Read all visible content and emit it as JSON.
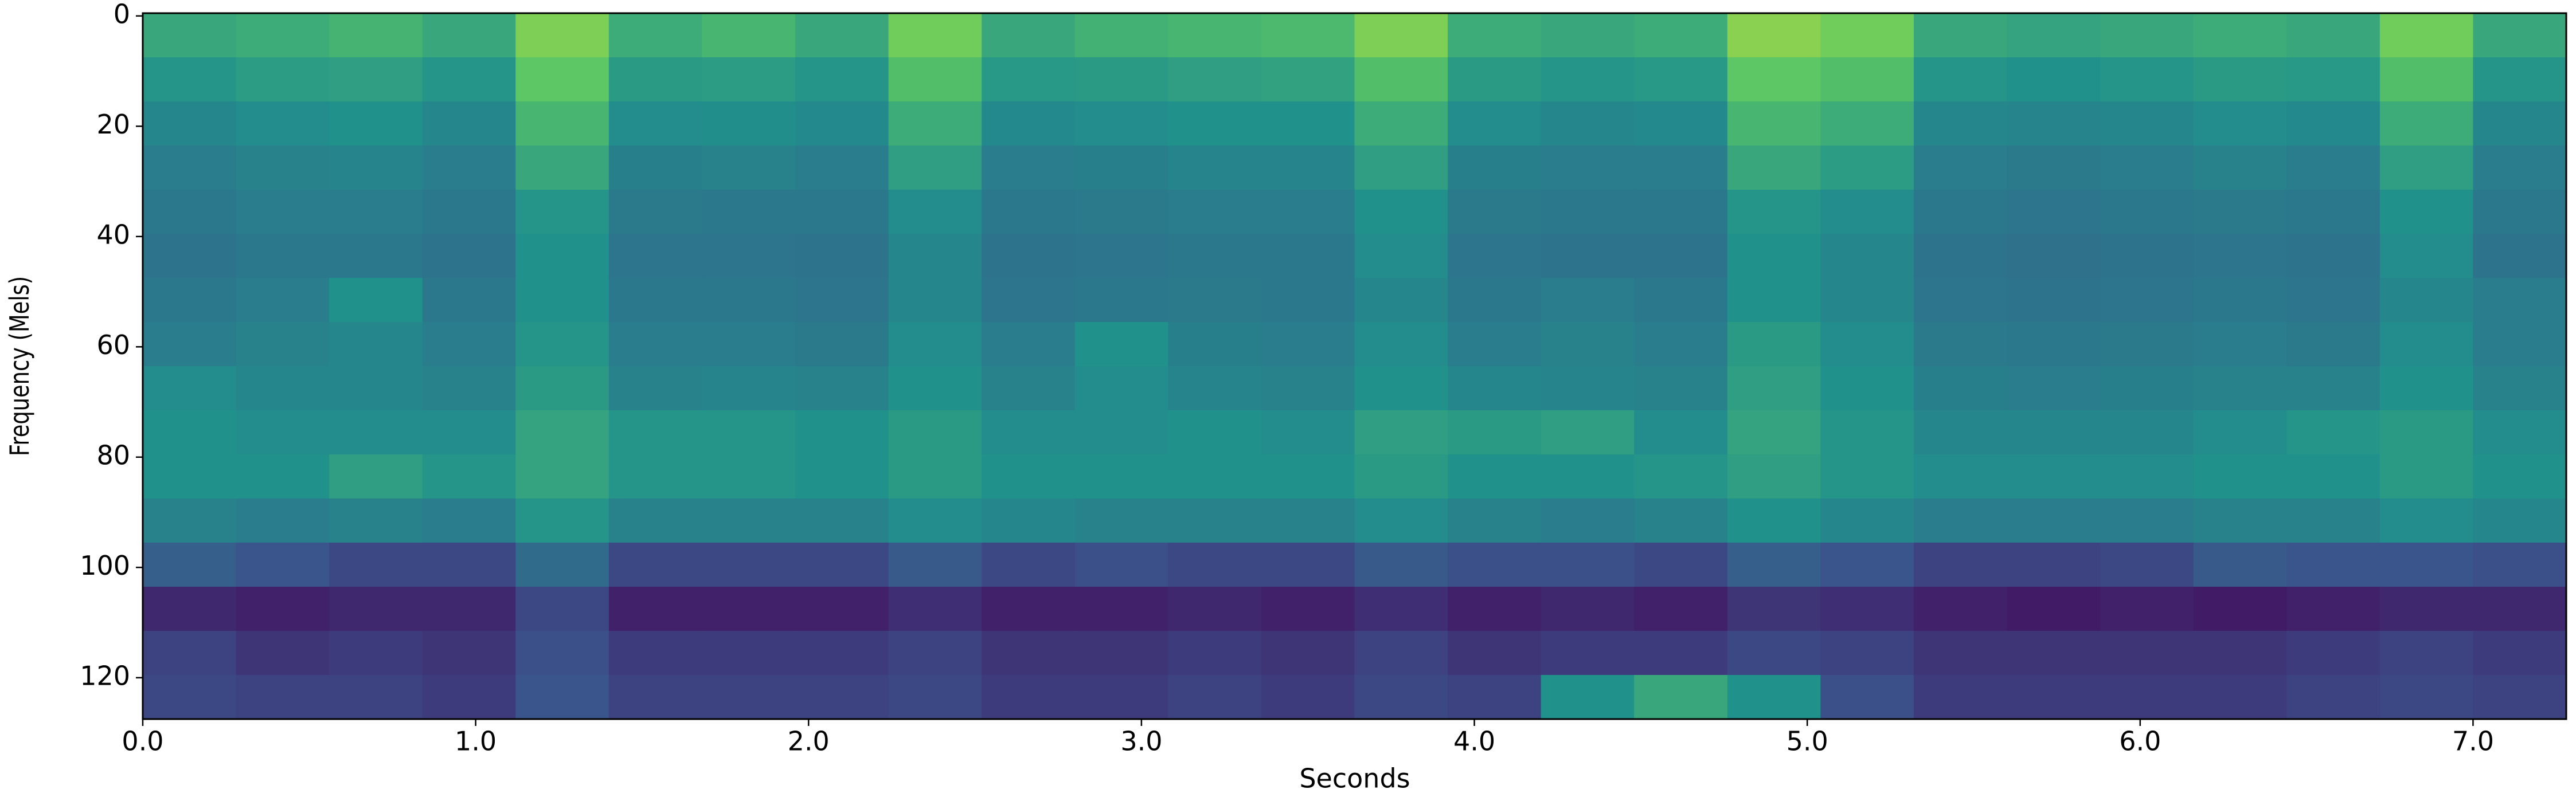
{
  "chart_data": {
    "type": "spectrogram",
    "colormap": "viridis",
    "x_label": "Seconds",
    "y_label": "Frequency (Mels)",
    "xlim": [
      0,
      7.28
    ],
    "ylim": [
      127.5,
      -0.5
    ],
    "xticks": [
      {
        "value": 0,
        "label": "0.0"
      },
      {
        "value": 1,
        "label": "1.0"
      },
      {
        "value": 2,
        "label": "2.0"
      },
      {
        "value": 3,
        "label": "3.0"
      },
      {
        "value": 4,
        "label": "4.0"
      },
      {
        "value": 5,
        "label": "5.0"
      },
      {
        "value": 6,
        "label": "6.0"
      },
      {
        "value": 7,
        "label": "7.0"
      }
    ],
    "yticks": [
      0,
      20,
      40,
      60,
      80,
      100,
      120
    ],
    "xbins": [
      0,
      0.28,
      0.56,
      0.84,
      1.12,
      1.4,
      1.68,
      1.96,
      2.24,
      2.52,
      2.8,
      3.08,
      3.36,
      3.64,
      3.92,
      4.2,
      4.48,
      4.76,
      5.04,
      5.32,
      5.6,
      5.88,
      6.16,
      6.44,
      6.72,
      7.0,
      7.28
    ],
    "ybins": [
      -0.5,
      7.5,
      15.5,
      23.5,
      31.5,
      39.5,
      47.5,
      55.5,
      63.5,
      71.5,
      79.5,
      87.5,
      95.5,
      103.5,
      111.5,
      119.5,
      127.5
    ],
    "z": [
      [
        0.6,
        0.62,
        0.65,
        0.6,
        0.8,
        0.62,
        0.66,
        0.6,
        0.78,
        0.6,
        0.64,
        0.66,
        0.68,
        0.8,
        0.62,
        0.6,
        0.62,
        0.82,
        0.78,
        0.6,
        0.58,
        0.6,
        0.62,
        0.6,
        0.78,
        0.6
      ],
      [
        0.52,
        0.55,
        0.56,
        0.52,
        0.74,
        0.54,
        0.55,
        0.52,
        0.7,
        0.53,
        0.54,
        0.56,
        0.57,
        0.7,
        0.54,
        0.52,
        0.53,
        0.74,
        0.7,
        0.52,
        0.5,
        0.52,
        0.54,
        0.53,
        0.7,
        0.52
      ],
      [
        0.46,
        0.48,
        0.5,
        0.46,
        0.66,
        0.48,
        0.49,
        0.47,
        0.62,
        0.47,
        0.48,
        0.5,
        0.5,
        0.62,
        0.48,
        0.46,
        0.47,
        0.66,
        0.62,
        0.46,
        0.45,
        0.46,
        0.48,
        0.47,
        0.62,
        0.46
      ],
      [
        0.42,
        0.44,
        0.45,
        0.42,
        0.6,
        0.43,
        0.44,
        0.42,
        0.56,
        0.42,
        0.43,
        0.45,
        0.45,
        0.56,
        0.43,
        0.42,
        0.42,
        0.6,
        0.55,
        0.42,
        0.41,
        0.42,
        0.44,
        0.42,
        0.56,
        0.42
      ],
      [
        0.4,
        0.42,
        0.42,
        0.4,
        0.52,
        0.41,
        0.4,
        0.4,
        0.48,
        0.4,
        0.41,
        0.42,
        0.42,
        0.5,
        0.41,
        0.4,
        0.4,
        0.52,
        0.48,
        0.4,
        0.39,
        0.4,
        0.41,
        0.4,
        0.5,
        0.4
      ],
      [
        0.38,
        0.4,
        0.4,
        0.38,
        0.5,
        0.39,
        0.39,
        0.38,
        0.46,
        0.38,
        0.39,
        0.4,
        0.4,
        0.48,
        0.39,
        0.38,
        0.38,
        0.5,
        0.46,
        0.38,
        0.37,
        0.38,
        0.39,
        0.38,
        0.48,
        0.38
      ],
      [
        0.4,
        0.42,
        0.5,
        0.4,
        0.5,
        0.4,
        0.4,
        0.39,
        0.46,
        0.39,
        0.4,
        0.41,
        0.4,
        0.46,
        0.4,
        0.42,
        0.4,
        0.5,
        0.46,
        0.39,
        0.38,
        0.39,
        0.4,
        0.39,
        0.46,
        0.42
      ],
      [
        0.42,
        0.44,
        0.46,
        0.42,
        0.52,
        0.42,
        0.42,
        0.41,
        0.48,
        0.42,
        0.5,
        0.43,
        0.42,
        0.48,
        0.42,
        0.44,
        0.42,
        0.54,
        0.48,
        0.41,
        0.4,
        0.41,
        0.42,
        0.41,
        0.48,
        0.42
      ],
      [
        0.48,
        0.46,
        0.46,
        0.44,
        0.54,
        0.44,
        0.45,
        0.44,
        0.5,
        0.44,
        0.48,
        0.45,
        0.44,
        0.5,
        0.46,
        0.45,
        0.44,
        0.56,
        0.5,
        0.43,
        0.42,
        0.43,
        0.44,
        0.44,
        0.5,
        0.44
      ],
      [
        0.5,
        0.48,
        0.48,
        0.48,
        0.58,
        0.52,
        0.52,
        0.5,
        0.54,
        0.48,
        0.48,
        0.5,
        0.48,
        0.56,
        0.54,
        0.56,
        0.48,
        0.58,
        0.52,
        0.46,
        0.46,
        0.46,
        0.48,
        0.52,
        0.54,
        0.48
      ],
      [
        0.5,
        0.5,
        0.56,
        0.52,
        0.58,
        0.52,
        0.52,
        0.5,
        0.54,
        0.5,
        0.5,
        0.5,
        0.5,
        0.54,
        0.5,
        0.5,
        0.52,
        0.56,
        0.52,
        0.48,
        0.48,
        0.48,
        0.5,
        0.5,
        0.54,
        0.5
      ],
      [
        0.44,
        0.42,
        0.44,
        0.42,
        0.52,
        0.44,
        0.44,
        0.44,
        0.48,
        0.46,
        0.44,
        0.44,
        0.44,
        0.48,
        0.44,
        0.42,
        0.44,
        0.5,
        0.46,
        0.42,
        0.42,
        0.42,
        0.44,
        0.44,
        0.48,
        0.46
      ],
      [
        0.3,
        0.26,
        0.22,
        0.22,
        0.35,
        0.22,
        0.22,
        0.22,
        0.28,
        0.22,
        0.24,
        0.22,
        0.22,
        0.28,
        0.24,
        0.24,
        0.22,
        0.3,
        0.26,
        0.2,
        0.2,
        0.22,
        0.28,
        0.26,
        0.26,
        0.24
      ],
      [
        0.12,
        0.1,
        0.12,
        0.12,
        0.22,
        0.1,
        0.1,
        0.1,
        0.14,
        0.1,
        0.1,
        0.12,
        0.1,
        0.14,
        0.1,
        0.12,
        0.1,
        0.16,
        0.14,
        0.1,
        0.08,
        0.1,
        0.08,
        0.1,
        0.12,
        0.12
      ],
      [
        0.2,
        0.16,
        0.18,
        0.16,
        0.24,
        0.18,
        0.18,
        0.18,
        0.2,
        0.16,
        0.16,
        0.18,
        0.16,
        0.2,
        0.16,
        0.18,
        0.18,
        0.22,
        0.2,
        0.16,
        0.16,
        0.16,
        0.16,
        0.18,
        0.2,
        0.18
      ],
      [
        0.22,
        0.2,
        0.2,
        0.18,
        0.26,
        0.2,
        0.2,
        0.2,
        0.22,
        0.18,
        0.18,
        0.2,
        0.18,
        0.22,
        0.2,
        0.5,
        0.6,
        0.5,
        0.24,
        0.18,
        0.18,
        0.18,
        0.18,
        0.2,
        0.22,
        0.2
      ]
    ]
  }
}
